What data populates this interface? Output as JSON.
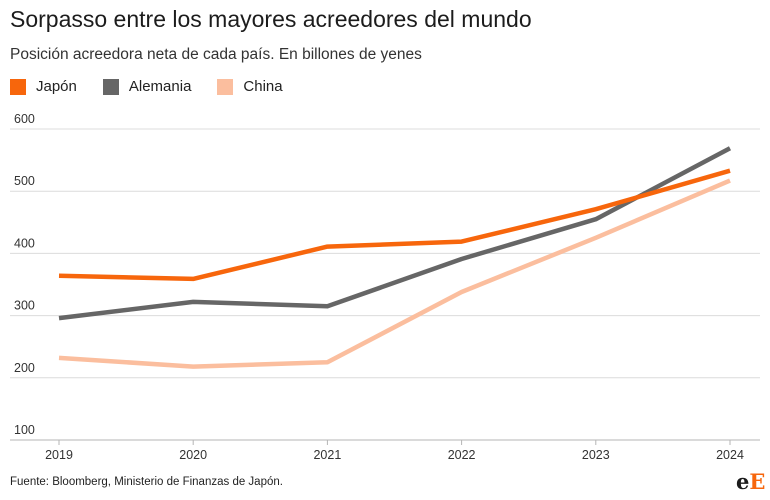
{
  "header": {
    "title": "Sorpasso entre los mayores acreedores del mundo",
    "subtitle": "Posición acreedora neta de cada país. En billones de yenes"
  },
  "legend": [
    {
      "label": "Japón",
      "color": "#f7660c"
    },
    {
      "label": "Alemania",
      "color": "#666666"
    },
    {
      "label": "China",
      "color": "#fbbe9e"
    }
  ],
  "chart_data": {
    "type": "line",
    "title": "Sorpasso entre los mayores acreedores del mundo",
    "subtitle": "Posición acreedora neta de cada país. En billones de yenes",
    "x": [
      "2019",
      "2020",
      "2021",
      "2022",
      "2023",
      "2024"
    ],
    "ylim": [
      100,
      600
    ],
    "yticks": [
      "600",
      "500",
      "400",
      "300",
      "200",
      "100"
    ],
    "grid": true,
    "legend_position": "top-left",
    "series": [
      {
        "name": "Japón",
        "color": "#f7660c",
        "values": [
          364,
          359,
          411,
          419,
          471,
          533
        ]
      },
      {
        "name": "Alemania",
        "color": "#666666",
        "values": [
          296,
          322,
          315,
          391,
          455,
          569
        ]
      },
      {
        "name": "China",
        "color": "#fbbe9e",
        "values": [
          232,
          218,
          225,
          338,
          425,
          517
        ]
      }
    ]
  },
  "footer": {
    "source": "Fuente: Bloomberg, Ministerio de Finanzas de Japón.",
    "logo_e": "e",
    "logo_E": "E"
  }
}
